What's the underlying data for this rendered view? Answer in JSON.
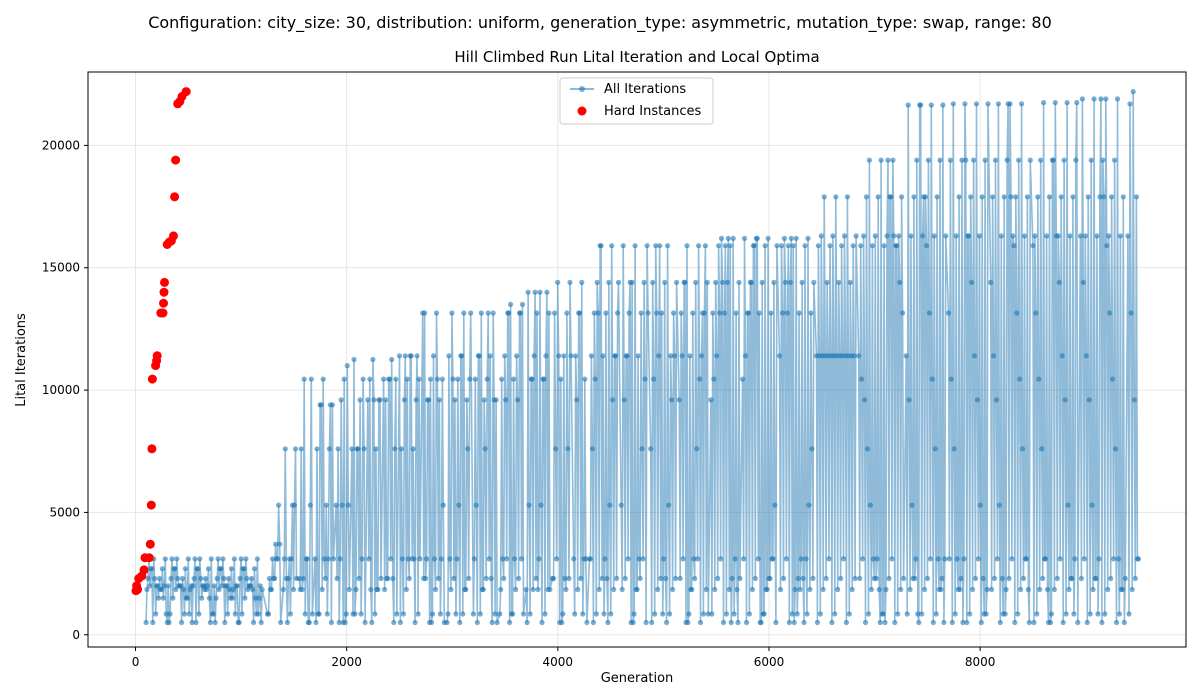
{
  "figure": {
    "suptitle": "Configuration: city_size: 30, distribution: uniform, generation_type: asymmetric, mutation_type: swap, range: 80"
  },
  "chart_data": {
    "type": "scatter",
    "title": "Hill Climbed Run Lital Iteration and Local Optima",
    "xlabel": "Generation",
    "ylabel": "Lital Iterations",
    "xlim": [
      -450,
      9950
    ],
    "ylim": [
      -500,
      23000
    ],
    "xticks": [
      0,
      2000,
      4000,
      6000,
      8000
    ],
    "yticks": [
      0,
      5000,
      10000,
      15000,
      20000
    ],
    "grid": true,
    "legend_position": "top-center",
    "colors": {
      "all_iterations": "#1f77b4",
      "hard_instances": "#ff0000"
    },
    "series": [
      {
        "name": "All Iterations",
        "style": "line+markers",
        "description_generation_range": [
          0,
          9500
        ],
        "blocks": [
          {
            "x": 100,
            "xmax": 1200,
            "values": [
              500,
              850,
              1500,
              1850,
              2000,
              2300,
              2700,
              3100
            ]
          },
          {
            "x": 1250,
            "values": [
              500,
              850,
              1850,
              2300,
              3100,
              3700,
              5300
            ]
          },
          {
            "x": 1400,
            "values": [
              500,
              850,
              1850,
              2300,
              3100,
              5300,
              7600
            ]
          },
          {
            "x": 1550,
            "values": [
              500,
              850,
              1850,
              2300,
              3100,
              5300,
              7600,
              10450
            ]
          },
          {
            "x": 1700,
            "values": [
              500,
              850,
              1850,
              2300,
              3100,
              5300,
              7600,
              9400,
              10450
            ]
          },
          {
            "x": 1900,
            "values": [
              500,
              850,
              1850,
              2300,
              3100,
              5300,
              7600,
              9600,
              10450,
              11000
            ]
          },
          {
            "x": 2050,
            "values": [
              500,
              850,
              1850,
              2300,
              3100,
              5300,
              7600,
              9600,
              10450,
              11250
            ]
          },
          {
            "x": 2200,
            "values": [
              500,
              850,
              1850,
              2300,
              3100,
              5300,
              7600,
              9600,
              10450,
              11250
            ]
          },
          {
            "x": 2350,
            "values": [
              500,
              850,
              1850,
              2300,
              3100,
              5300,
              7600,
              9600,
              10450,
              11250
            ]
          },
          {
            "x": 2500,
            "values": [
              500,
              850,
              1850,
              2300,
              3100,
              5300,
              7600,
              9600,
              10450,
              11400
            ]
          },
          {
            "x": 2720,
            "values": [
              500,
              850,
              1850,
              2300,
              3100,
              5300,
              7600,
              9600,
              10450,
              11400,
              13150
            ]
          },
          {
            "x": 2950,
            "values": [
              500,
              850,
              1850,
              2300,
              3100,
              5300,
              7600,
              9600,
              10450,
              11400,
              13150
            ]
          },
          {
            "x": 3200,
            "values": [
              500,
              850,
              1850,
              2300,
              3100,
              5300,
              7600,
              9600,
              10450,
              11400,
              13150
            ]
          },
          {
            "x": 3450,
            "values": [
              500,
              850,
              1850,
              2300,
              3100,
              5300,
              7600,
              9600,
              10450,
              11400,
              13150,
              13500
            ]
          },
          {
            "x": 3700,
            "values": [
              500,
              850,
              1850,
              2300,
              3100,
              5300,
              7600,
              9600,
              10450,
              11400,
              13150,
              14000
            ]
          },
          {
            "x": 3950,
            "values": [
              500,
              850,
              1850,
              2300,
              3100,
              5300,
              7600,
              9600,
              10450,
              11400,
              13150,
              14400
            ]
          },
          {
            "x": 4150,
            "values": [
              500,
              850,
              1850,
              2300,
              3100,
              5300,
              7600,
              9600,
              10450,
              11400,
              13150,
              14400
            ]
          },
          {
            "x": 4300,
            "values": [
              500,
              850,
              1850,
              2300,
              3100,
              5300,
              7600,
              9600,
              10450,
              11400,
              13150,
              14400,
              15900
            ]
          },
          {
            "x": 4600,
            "values": [
              500,
              850,
              1850,
              2300,
              3100,
              5300,
              7600,
              9600,
              10450,
              11400,
              13150,
              14400,
              15900
            ]
          },
          {
            "x": 4880,
            "values": [
              500,
              850,
              1850,
              2300,
              3100,
              5300,
              7600,
              9600,
              10450,
              11400,
              13150,
              14400,
              15900
            ]
          },
          {
            "x": 5150,
            "values": [
              500,
              850,
              1850,
              2300,
              3100,
              5300,
              7600,
              9600,
              10450,
              11400,
              13150,
              14400,
              15900
            ]
          },
          {
            "x": 5450,
            "values": [
              500,
              850,
              1850,
              2300,
              3100,
              5300,
              7600,
              9600,
              10450,
              11400,
              13150,
              14400,
              15900,
              16200
            ]
          },
          {
            "x": 5750,
            "values": [
              500,
              850,
              1850,
              2300,
              3100,
              5300,
              7600,
              9600,
              10450,
              11400,
              13150,
              14400,
              15900,
              16200
            ]
          },
          {
            "x": 6100,
            "values": [
              500,
              850,
              1850,
              2300,
              3100,
              5300,
              7600,
              9600,
              10450,
              11400,
              13150,
              14400,
              15900,
              16200
            ]
          },
          {
            "x": 6450,
            "values": [
              500,
              850,
              1850,
              2300,
              3100,
              5300,
              7600,
              9600,
              10450,
              11400,
              13150,
              14400,
              15900,
              16300,
              17900
            ]
          },
          {
            "x": 6850,
            "values": [
              500,
              850,
              1850,
              2300,
              3100,
              5300,
              7600,
              9600,
              10450,
              11400,
              13150,
              14400,
              15900,
              16300,
              17900,
              19400
            ]
          },
          {
            "x": 7300,
            "values": [
              500,
              850,
              1850,
              2300,
              3100,
              5300,
              7600,
              9600,
              10450,
              11400,
              13150,
              14400,
              15900,
              16300,
              17900,
              19400,
              21650
            ]
          },
          {
            "x": 7700,
            "values": [
              500,
              850,
              1850,
              2300,
              3100,
              5300,
              7600,
              9600,
              10450,
              11400,
              13150,
              14400,
              15900,
              16300,
              17900,
              19400,
              21700
            ]
          },
          {
            "x": 8100,
            "values": [
              500,
              850,
              1850,
              2300,
              3100,
              5300,
              7600,
              9600,
              10450,
              11400,
              13150,
              14400,
              15900,
              16300,
              17900,
              19400,
              21700
            ]
          },
          {
            "x": 8500,
            "values": [
              500,
              850,
              1850,
              2300,
              3100,
              5300,
              7600,
              9600,
              10450,
              11400,
              13150,
              14400,
              15900,
              16300,
              17900,
              19400,
              21750
            ]
          },
          {
            "x": 8950,
            "values": [
              500,
              850,
              1850,
              2300,
              3100,
              5300,
              7600,
              9600,
              10450,
              11400,
              13150,
              14400,
              15900,
              16300,
              17900,
              19400,
              21900
            ]
          },
          {
            "x": 9400,
            "values": [
              500,
              850,
              1850,
              2300,
              3100,
              5000,
              7600,
              9600,
              10450,
              11400,
              13150,
              14400,
              15900,
              16300,
              17900,
              19400,
              21700,
              22200
            ]
          }
        ]
      },
      {
        "name": "Hard Instances",
        "style": "markers",
        "points": [
          {
            "x": 5,
            "y": 1800
          },
          {
            "x": 10,
            "y": 2000
          },
          {
            "x": 20,
            "y": 1850
          },
          {
            "x": 30,
            "y": 2300
          },
          {
            "x": 60,
            "y": 2400
          },
          {
            "x": 80,
            "y": 2650
          },
          {
            "x": 90,
            "y": 3150
          },
          {
            "x": 130,
            "y": 3150
          },
          {
            "x": 140,
            "y": 3700
          },
          {
            "x": 150,
            "y": 5300
          },
          {
            "x": 155,
            "y": 7600
          },
          {
            "x": 160,
            "y": 10450
          },
          {
            "x": 190,
            "y": 11000
          },
          {
            "x": 200,
            "y": 11200
          },
          {
            "x": 205,
            "y": 11400
          },
          {
            "x": 240,
            "y": 13150
          },
          {
            "x": 260,
            "y": 13150
          },
          {
            "x": 265,
            "y": 13550
          },
          {
            "x": 270,
            "y": 14000
          },
          {
            "x": 275,
            "y": 14400
          },
          {
            "x": 300,
            "y": 15950
          },
          {
            "x": 320,
            "y": 16050
          },
          {
            "x": 340,
            "y": 16100
          },
          {
            "x": 360,
            "y": 16300
          },
          {
            "x": 370,
            "y": 17900
          },
          {
            "x": 380,
            "y": 19400
          },
          {
            "x": 400,
            "y": 21700
          },
          {
            "x": 420,
            "y": 21800
          },
          {
            "x": 440,
            "y": 22000
          },
          {
            "x": 480,
            "y": 22200
          }
        ]
      }
    ]
  }
}
